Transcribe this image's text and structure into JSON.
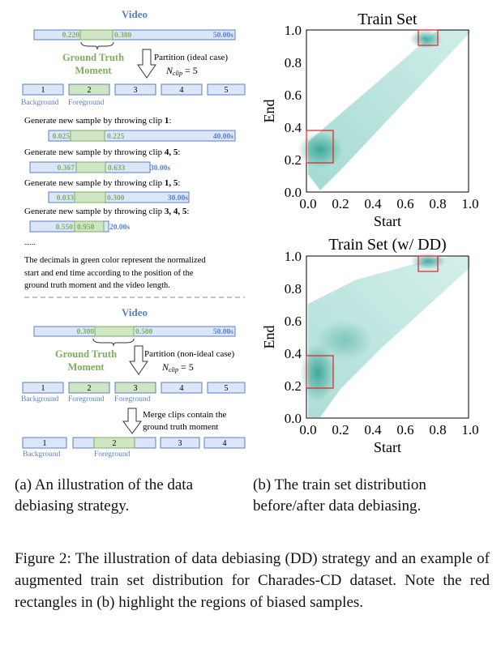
{
  "part_a": {
    "top": {
      "video_label": "Video",
      "start_value": "0.220",
      "end_value": "0.380",
      "video_length": "50.00s",
      "gt_label_line1": "Ground Truth",
      "gt_label_line2": "Moment",
      "partition_label": "Partition (ideal case)",
      "nclip_label": "N",
      "nclip_sub": "clip",
      "nclip_value": " = 5",
      "clips": [
        "1",
        "2",
        "3",
        "4",
        "5"
      ],
      "background_label": "Background",
      "foreground_label": "Foreground",
      "samples": [
        {
          "title": "Generate new sample by throwing clip ",
          "clips_bold": "1",
          "start": "0.025",
          "end": "0.225",
          "length": "40.00s"
        },
        {
          "title": "Generate new sample by throwing clip ",
          "clips_bold": "4, 5",
          "start": "0.367",
          "end": "0.633",
          "length": "30.00s"
        },
        {
          "title": "Generate new sample by throwing clip ",
          "clips_bold": "1, 5",
          "start": "0.033",
          "end": "0.300",
          "length": "30.00s"
        },
        {
          "title": "Generate new sample by throwing clip ",
          "clips_bold": "3, 4, 5",
          "start": "0.550",
          "end": "0.950",
          "length": "20.00s"
        }
      ],
      "ellipsis": "......",
      "note_line1": "The decimals in green color represent the normalized",
      "note_line2": "start and end time according to the position of the",
      "note_line3": "ground truth moment and the video length."
    },
    "bottom": {
      "video_label": "Video",
      "start_value": "0.300",
      "end_value": "0.500",
      "video_length": "50.00s",
      "gt_label_line1": "Ground Truth",
      "gt_label_line2": "Moment",
      "partition_label": "Partition (non-ideal case)",
      "nclip_label": "N",
      "nclip_sub": "clip",
      "nclip_value": " = 5",
      "clips": [
        "1",
        "2",
        "3",
        "4",
        "5"
      ],
      "background_label": "Background",
      "foreground_label": "Foreground",
      "merge_line1": "Merge clips contain the",
      "merge_line2": "ground truth moment",
      "merged_clips": [
        "1",
        "2",
        "3",
        "4"
      ]
    }
  },
  "part_b": {
    "ticks": [
      "0.0",
      "0.2",
      "0.4",
      "0.6",
      "0.8",
      "1.0"
    ]
  },
  "chart_data": [
    {
      "type": "heatmap",
      "title": "Train Set",
      "xlabel": "Start",
      "ylabel": "End",
      "xlim": [
        0,
        1
      ],
      "ylim": [
        0,
        1
      ],
      "highlight_regions": [
        {
          "x": [
            0.0,
            0.17
          ],
          "y": [
            0.2,
            0.38
          ]
        },
        {
          "x": [
            0.7,
            0.82
          ],
          "y": [
            0.9,
            1.0
          ]
        }
      ]
    },
    {
      "type": "heatmap",
      "title": "Train Set (w/ DD)",
      "xlabel": "Start",
      "ylabel": "End",
      "xlim": [
        0,
        1
      ],
      "ylim": [
        0,
        1
      ],
      "highlight_regions": [
        {
          "x": [
            0.0,
            0.17
          ],
          "y": [
            0.2,
            0.38
          ]
        },
        {
          "x": [
            0.7,
            0.82
          ],
          "y": [
            0.9,
            1.0
          ]
        }
      ]
    }
  ],
  "captions": {
    "a_line1": "(a)  An illustration of the data",
    "a_line2": "debiasing strategy.",
    "b_line1": "(b)  The train set distribution",
    "b_line2": "before/after data debiasing.",
    "main": "Figure 2: The illustration of data debiasing (DD) strategy and an example of augmented train set distribution for Charades-CD dataset. Note the red rectangles in (b) highlight the regions of biased samples."
  },
  "colors": {
    "clip_fill": "#dbe6f8",
    "clip_stroke": "#5b7fc4",
    "gt_fill": "#cfe5c4",
    "gt_text": "#7fae5e",
    "label_blue": "#5b7fc4",
    "heat": "#2a9d8f",
    "highlight": "#e02020"
  }
}
